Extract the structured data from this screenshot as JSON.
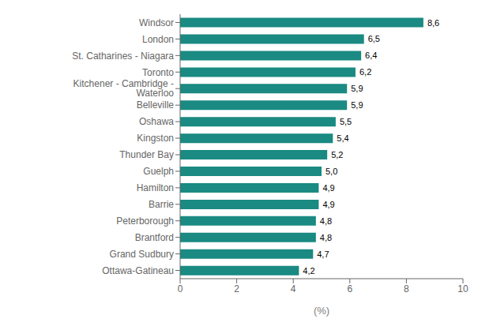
{
  "chart_data": {
    "type": "bar",
    "orientation": "horizontal",
    "categories": [
      "Ottawa-Gatineau",
      "Grand Sudbury",
      "Brantford",
      "Peterborough",
      "Barrie",
      "Hamilton",
      "Guelph",
      "Thunder Bay",
      "Kingston",
      "Oshawa",
      "Belleville",
      "Kitchener - Cambridge - Waterloo",
      "Toronto",
      "St. Catharines - Niagara",
      "London",
      "Windsor"
    ],
    "values": [
      4.2,
      4.7,
      4.8,
      4.8,
      4.9,
      4.9,
      5.0,
      5.2,
      5.4,
      5.5,
      5.9,
      5.9,
      6.2,
      6.4,
      6.5,
      8.6
    ],
    "value_labels": [
      "4,2",
      "4,7",
      "4,8",
      "4,8",
      "4,9",
      "4,9",
      "5,0",
      "5,2",
      "5,4",
      "5,5",
      "5,9",
      "5,9",
      "6,2",
      "6,4",
      "6,5",
      "8,6"
    ],
    "data_labels": true,
    "color": "#1a8a82",
    "xlabel": "(%)",
    "xlim": [
      0,
      10
    ],
    "xticks": [
      0,
      2,
      4,
      6,
      8,
      10
    ],
    "grid": false
  }
}
